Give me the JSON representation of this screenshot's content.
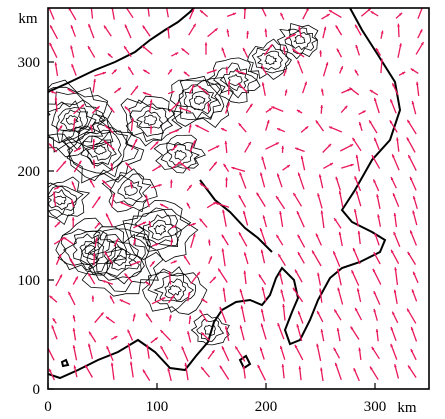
{
  "figure": {
    "x_unit": "km",
    "y_unit": "km",
    "x_ticks": [
      "0",
      "100",
      "200",
      "300"
    ],
    "y_ticks": [
      "0",
      "100",
      "200",
      "300"
    ],
    "x_range_km": [
      0,
      350
    ],
    "y_range_km": [
      0,
      350
    ]
  },
  "colors": {
    "background": "#ffffff",
    "frame": "#000000",
    "coastline": "#000000",
    "contours": "#000000",
    "wind_vectors": "#e8185a"
  },
  "layers": {
    "coastline": "land/sea boundary",
    "contours": "terrain elevation contours",
    "vectors": "wind vectors"
  }
}
